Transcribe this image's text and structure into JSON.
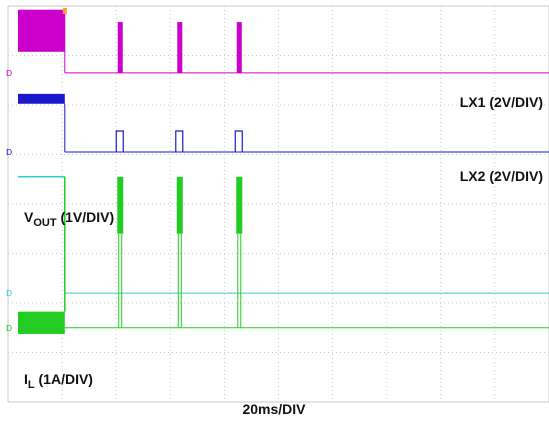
{
  "chart_data": {
    "type": "line",
    "title": "",
    "xlabel": "20ms/DIV",
    "x_unit": "ms",
    "x_range": [
      0,
      200
    ],
    "grid": {
      "x_divisions": 10,
      "y_divisions": 8
    },
    "events": {
      "enable_off_ms": 21,
      "pulse_times_ms": [
        41.5,
        63.5,
        85.5
      ]
    },
    "series": [
      {
        "name": "LX1 (2V/DIV)",
        "label_main": "LX1 (2V/DIV)",
        "label_sub": "",
        "color": "#cc00cc",
        "marker": "D",
        "baseline_div": 2.7,
        "active_band_div": [
          0.15,
          1.85
        ],
        "pulse_band_div": [
          0.15,
          2.7
        ],
        "style": "switching"
      },
      {
        "name": "LX2 (2V/DIV)",
        "label_main": "LX2 (2V/DIV)",
        "label_sub": "",
        "color": "#1a1acc",
        "marker": "D",
        "baseline_div": 5.9,
        "active_band_div": [
          3.55,
          3.95
        ],
        "pulse_top_div": 5.05,
        "style": "pulse"
      },
      {
        "name": "VOUT (1V/DIV)",
        "label_main": "V",
        "label_sub": "OUT",
        "label_rest": " (1V/DIV)",
        "color": "#33cccc",
        "marker": "D",
        "active_level_div": 6.9,
        "recovered_level_div": 11.6,
        "style": "step"
      },
      {
        "name": "IL (1A/DIV)",
        "label_main": "I",
        "label_sub": "L",
        "label_rest": " (1A/DIV)",
        "color": "#22cc22",
        "marker": "D",
        "baseline_div": 13.0,
        "active_band_div": [
          12.35,
          13.25
        ],
        "pulse_band_div": [
          6.9,
          9.2
        ],
        "tail_top_div": 10.9,
        "style": "current"
      }
    ]
  }
}
